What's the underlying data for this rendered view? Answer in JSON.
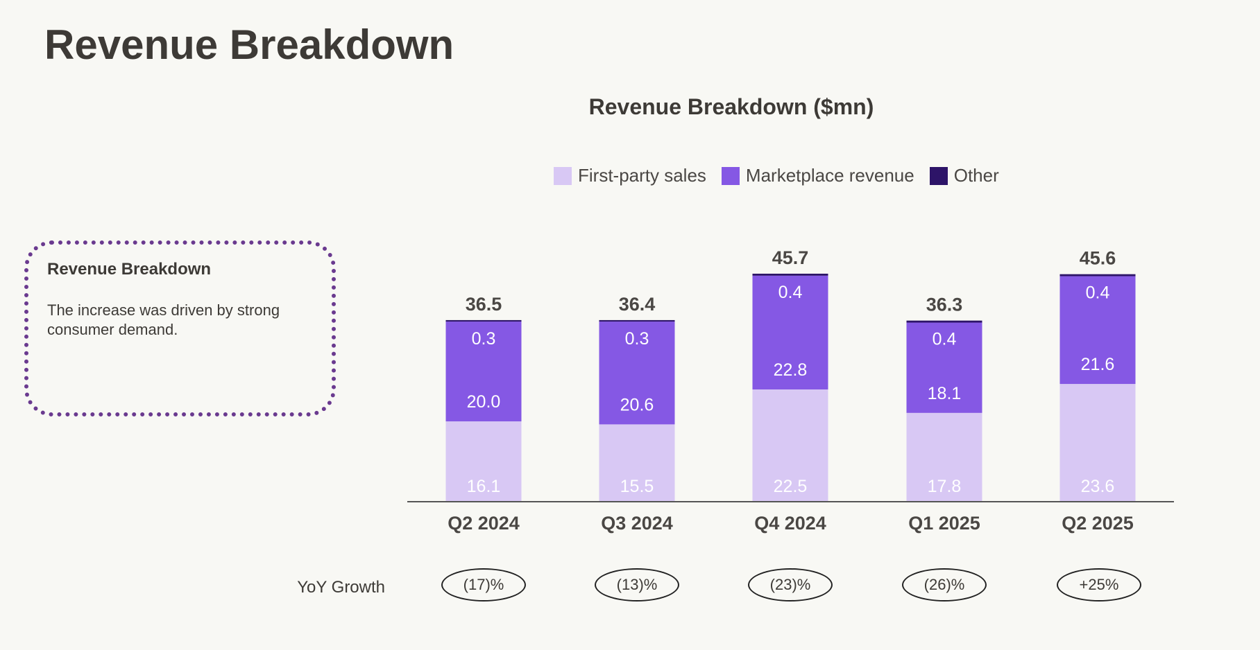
{
  "page": {
    "title": "Revenue Breakdown"
  },
  "callout": {
    "title": "Revenue Breakdown",
    "body": "The increase was driven by strong consumer demand."
  },
  "chart_data": {
    "type": "bar",
    "stacked": true,
    "title": "Revenue Breakdown ($mn)",
    "xlabel": "",
    "ylabel": "",
    "legend_position": "top",
    "grid": false,
    "categories": [
      "Q2 2024",
      "Q3 2024",
      "Q4 2024",
      "Q1 2025",
      "Q2 2025"
    ],
    "series": [
      {
        "name": "First-party sales",
        "color": "#d8c8f4",
        "values": [
          16.1,
          15.5,
          22.5,
          17.8,
          23.6
        ]
      },
      {
        "name": "Marketplace revenue",
        "color": "#8558e4",
        "values": [
          20.0,
          20.6,
          22.8,
          18.1,
          21.6
        ]
      },
      {
        "name": "Other",
        "color": "#2d1468",
        "values": [
          0.3,
          0.3,
          0.4,
          0.4,
          0.4
        ]
      }
    ],
    "totals": [
      "36.5",
      "36.4",
      "45.7",
      "36.3",
      "45.6"
    ],
    "segment_labels": [
      [
        "16.1",
        "15.5",
        "22.5",
        "17.8",
        "23.6"
      ],
      [
        "20.0",
        "20.6",
        "22.8",
        "18.1",
        "21.6"
      ],
      [
        "0.3",
        "0.3",
        "0.4",
        "0.4",
        "0.4"
      ]
    ]
  },
  "yoy": {
    "label": "YoY Growth",
    "values": [
      "(17)%",
      "(13)%",
      "(23)%",
      "(26)%",
      "+25%"
    ]
  }
}
